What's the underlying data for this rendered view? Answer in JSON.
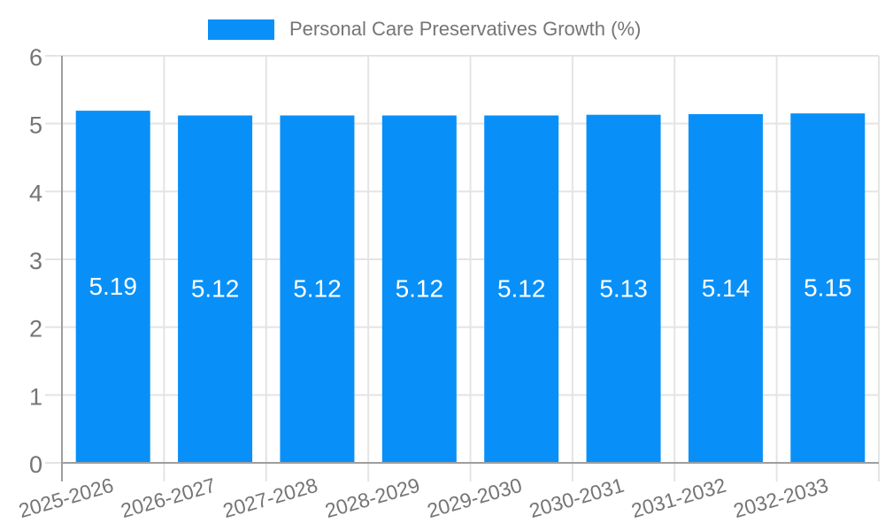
{
  "legend": {
    "label": "Personal Care Preservatives Growth (%)",
    "swatch_color": "#0890f8"
  },
  "chart_data": {
    "type": "bar",
    "title": "Personal Care Preservatives Growth (%)",
    "categories": [
      "2025-2026",
      "2026-2027",
      "2027-2028",
      "2028-2029",
      "2029-2030",
      "2030-2031",
      "2031-2032",
      "2032-2033"
    ],
    "values": [
      5.19,
      5.12,
      5.12,
      5.12,
      5.12,
      5.13,
      5.14,
      5.15
    ],
    "series_name": "Personal Care Preservatives Growth (%)",
    "xlabel": "",
    "ylabel": "",
    "ylim": [
      0,
      6
    ],
    "yticks": [
      0,
      1,
      2,
      3,
      4,
      5,
      6
    ],
    "grid": true,
    "legend_position": "top-center",
    "value_labels_position": "inside-center",
    "bar_color": "#0890f8",
    "value_label_color": "#ffffff",
    "axis_color": "#9e9e9e",
    "grid_color": "#e4e4e4",
    "text_color": "#757575"
  }
}
